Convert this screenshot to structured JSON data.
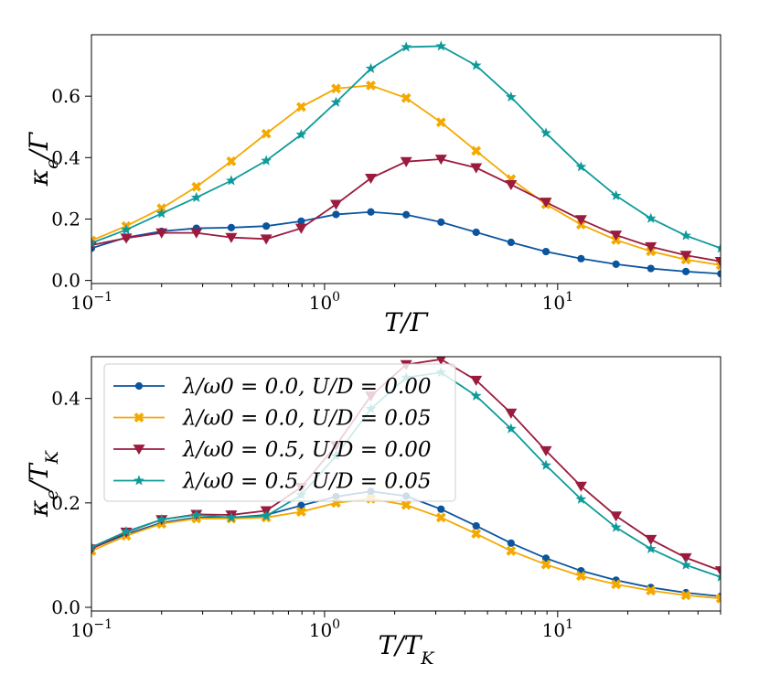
{
  "chart_data": [
    {
      "type": "line",
      "xscale": "log",
      "xlim": [
        0.1,
        50
      ],
      "ylim": [
        -0.01,
        0.8
      ],
      "xlabel": "T/Γ",
      "ylabel": "κe/Γ",
      "x_ticks": [
        {
          "value": 0.1,
          "base": "10",
          "exp": "−1"
        },
        {
          "value": 1,
          "base": "10",
          "exp": "0"
        },
        {
          "value": 10,
          "base": "10",
          "exp": "1"
        }
      ],
      "y_ticks": [
        {
          "value": 0.0,
          "label": "0.0"
        },
        {
          "value": 0.2,
          "label": "0.2"
        },
        {
          "value": 0.4,
          "label": "0.4"
        },
        {
          "value": 0.6,
          "label": "0.6"
        }
      ],
      "x": [
        0.1,
        0.141,
        0.2,
        0.282,
        0.398,
        0.562,
        0.794,
        1.12,
        1.58,
        2.24,
        3.16,
        4.47,
        6.31,
        8.91,
        12.6,
        17.8,
        25.1,
        35.5,
        50.1
      ],
      "series": [
        {
          "name": "λ/ω0 = 0.0, U/D = 0.00",
          "color": "#0b559f",
          "marker": "circle",
          "values": [
            0.105,
            0.14,
            0.16,
            0.17,
            0.172,
            0.177,
            0.193,
            0.215,
            0.223,
            0.214,
            0.19,
            0.157,
            0.124,
            0.094,
            0.071,
            0.053,
            0.039,
            0.029,
            0.022
          ]
        },
        {
          "name": "λ/ω0 = 0.0, U/D = 0.05",
          "color": "#f4a900",
          "marker": "x",
          "values": [
            0.13,
            0.177,
            0.235,
            0.305,
            0.388,
            0.478,
            0.565,
            0.625,
            0.635,
            0.594,
            0.515,
            0.422,
            0.33,
            0.248,
            0.182,
            0.132,
            0.095,
            0.068,
            0.05
          ]
        },
        {
          "name": "λ/ω0 = 0.5, U/D = 0.00",
          "color": "#9b1b3e",
          "marker": "triangle-down",
          "values": [
            0.115,
            0.138,
            0.155,
            0.155,
            0.14,
            0.135,
            0.17,
            0.248,
            0.333,
            0.387,
            0.395,
            0.367,
            0.312,
            0.255,
            0.198,
            0.148,
            0.11,
            0.082,
            0.062
          ]
        },
        {
          "name": "λ/ω0 = 0.5, U/D = 0.05",
          "color": "#0e9a9a",
          "marker": "star",
          "values": [
            0.122,
            0.165,
            0.218,
            0.27,
            0.325,
            0.39,
            0.475,
            0.58,
            0.69,
            0.76,
            0.763,
            0.7,
            0.597,
            0.48,
            0.37,
            0.276,
            0.202,
            0.146,
            0.105
          ]
        }
      ]
    },
    {
      "type": "line",
      "xscale": "log",
      "xlim": [
        0.1,
        50
      ],
      "ylim": [
        -0.007,
        0.48
      ],
      "xlabel": "T/TK",
      "ylabel": "κe/TK",
      "x_ticks": [
        {
          "value": 0.1,
          "base": "10",
          "exp": "−1"
        },
        {
          "value": 1,
          "base": "10",
          "exp": "0"
        },
        {
          "value": 10,
          "base": "10",
          "exp": "1"
        }
      ],
      "y_ticks": [
        {
          "value": 0.0,
          "label": "0.0"
        },
        {
          "value": 0.2,
          "label": "0.2"
        },
        {
          "value": 0.4,
          "label": "0.4"
        }
      ],
      "x": [
        0.1,
        0.141,
        0.2,
        0.282,
        0.398,
        0.562,
        0.794,
        1.12,
        1.58,
        2.24,
        3.16,
        4.47,
        6.31,
        8.91,
        12.6,
        17.8,
        25.1,
        35.5,
        50.1
      ],
      "legend": {
        "position": "upper-left",
        "entries": [
          {
            "label": "λ/ω0 = 0.0, U/D = 0.00",
            "color": "#0b559f",
            "marker": "circle"
          },
          {
            "label": "λ/ω0 = 0.0, U/D = 0.05",
            "color": "#f4a900",
            "marker": "x"
          },
          {
            "label": "λ/ω0 = 0.5, U/D = 0.00",
            "color": "#9b1b3e",
            "marker": "triangle-down"
          },
          {
            "label": "λ/ω0 = 0.5, U/D = 0.05",
            "color": "#0e9a9a",
            "marker": "star"
          }
        ]
      },
      "series": [
        {
          "name": "λ/ω0 = 0.0, U/D = 0.00",
          "color": "#0b559f",
          "marker": "circle",
          "values": [
            0.113,
            0.14,
            0.162,
            0.172,
            0.172,
            0.177,
            0.195,
            0.212,
            0.222,
            0.213,
            0.188,
            0.156,
            0.123,
            0.094,
            0.07,
            0.052,
            0.038,
            0.028,
            0.021
          ]
        },
        {
          "name": "λ/ω0 = 0.0, U/D = 0.05",
          "color": "#f4a900",
          "marker": "x",
          "values": [
            0.108,
            0.137,
            0.16,
            0.17,
            0.17,
            0.172,
            0.183,
            0.2,
            0.208,
            0.196,
            0.172,
            0.141,
            0.108,
            0.082,
            0.06,
            0.044,
            0.032,
            0.023,
            0.017
          ]
        },
        {
          "name": "λ/ω0 = 0.5, U/D = 0.00",
          "color": "#9b1b3e",
          "marker": "triangle-down",
          "values": [
            0.112,
            0.144,
            0.168,
            0.178,
            0.177,
            0.185,
            0.23,
            0.31,
            0.405,
            0.465,
            0.475,
            0.435,
            0.372,
            0.3,
            0.232,
            0.175,
            0.13,
            0.095,
            0.07
          ]
        },
        {
          "name": "λ/ω0 = 0.5, U/D = 0.05",
          "color": "#0e9a9a",
          "marker": "star",
          "values": [
            0.115,
            0.145,
            0.168,
            0.177,
            0.172,
            0.175,
            0.215,
            0.29,
            0.38,
            0.44,
            0.45,
            0.405,
            0.342,
            0.272,
            0.207,
            0.153,
            0.112,
            0.081,
            0.058
          ]
        }
      ]
    }
  ]
}
